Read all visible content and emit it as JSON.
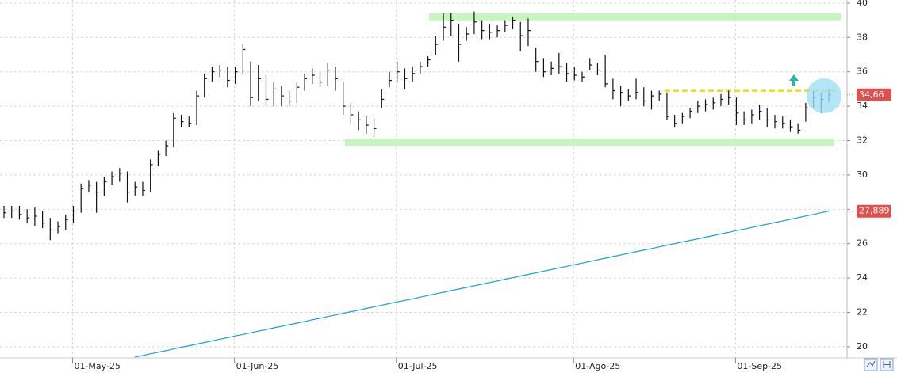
{
  "chart_data": {
    "type": "hlc",
    "categories": [
      null,
      null,
      null,
      null,
      null,
      null,
      null,
      null,
      null,
      "01-May-25",
      null,
      null,
      null,
      null,
      null,
      null,
      null,
      null,
      null,
      null,
      null,
      null,
      null,
      null,
      null,
      null,
      null,
      null,
      null,
      null,
      "01-Jun-25",
      null,
      null,
      null,
      null,
      null,
      null,
      null,
      null,
      null,
      null,
      null,
      null,
      null,
      null,
      null,
      null,
      null,
      null,
      null,
      null,
      "01-Jul-25",
      null,
      null,
      null,
      null,
      null,
      null,
      null,
      null,
      null,
      null,
      null,
      null,
      null,
      null,
      null,
      null,
      null,
      null,
      null,
      null,
      null,
      null,
      "01-Ago-25",
      null,
      null,
      null,
      null,
      null,
      null,
      null,
      null,
      null,
      null,
      null,
      null,
      null,
      null,
      null,
      null,
      null,
      null,
      null,
      null,
      "01-Sep-25",
      null,
      null,
      null,
      null,
      null,
      null,
      null,
      null,
      null,
      null,
      null,
      null
    ],
    "high": [
      28.2,
      28.2,
      28.2,
      28.0,
      28.1,
      27.9,
      27.5,
      27.3,
      27.7,
      28.2,
      29.5,
      29.7,
      29.6,
      29.9,
      30.2,
      30.4,
      30.2,
      29.6,
      29.6,
      30.9,
      31.4,
      32.0,
      33.6,
      33.5,
      33.4,
      34.9,
      35.9,
      36.3,
      36.4,
      36.3,
      36.3,
      37.6,
      36.6,
      36.4,
      35.8,
      35.4,
      35.2,
      34.9,
      35.4,
      35.9,
      36.2,
      36.0,
      36.5,
      36.3,
      35.4,
      34.2,
      33.7,
      33.4,
      33.3,
      35.0,
      36.0,
      36.6,
      36.2,
      36.3,
      36.6,
      36.9,
      38.1,
      39.4,
      39.4,
      38.8,
      38.6,
      39.5,
      39.0,
      38.8,
      38.7,
      39.0,
      39.2,
      38.9,
      39.1,
      37.4,
      36.8,
      36.6,
      37.1,
      36.5,
      36.3,
      36.0,
      36.8,
      36.5,
      37.0,
      35.6,
      35.2,
      35.0,
      35.6,
      35.1,
      34.9,
      34.9,
      34.8,
      33.5,
      33.6,
      33.9,
      34.3,
      34.4,
      34.5,
      34.7,
      34.9,
      34.5,
      33.7,
      33.8,
      34.1,
      33.9,
      33.5,
      33.4,
      33.2,
      33.0,
      34.2,
      34.9,
      34.8,
      35.0
    ],
    "low": [
      27.5,
      27.5,
      27.4,
      27.2,
      27.0,
      26.9,
      26.2,
      26.6,
      26.8,
      27.2,
      27.8,
      29.0,
      27.8,
      28.8,
      29.4,
      29.6,
      28.4,
      28.8,
      28.8,
      29.0,
      30.5,
      31.1,
      31.6,
      32.8,
      32.8,
      32.9,
      34.5,
      35.4,
      35.7,
      35.1,
      35.3,
      35.9,
      34.0,
      34.3,
      34.1,
      34.0,
      34.0,
      34.0,
      34.2,
      34.9,
      35.3,
      35.1,
      35.2,
      34.9,
      33.5,
      33.0,
      32.6,
      32.4,
      32.2,
      33.9,
      35.1,
      35.4,
      35.0,
      35.4,
      35.9,
      36.3,
      37.0,
      37.8,
      38.1,
      36.6,
      37.8,
      38.2,
      37.9,
      37.9,
      38.0,
      38.3,
      38.5,
      37.2,
      37.5,
      36.0,
      35.7,
      35.8,
      35.9,
      35.4,
      35.5,
      35.4,
      36.1,
      35.8,
      35.1,
      34.4,
      34.0,
      34.3,
      34.4,
      34.0,
      33.8,
      34.3,
      33.2,
      32.8,
      33.0,
      33.3,
      33.6,
      33.7,
      33.8,
      34.0,
      34.1,
      32.9,
      32.9,
      33.0,
      33.2,
      32.8,
      32.7,
      32.7,
      32.5,
      32.4,
      33.1,
      33.9,
      33.6,
      34.2
    ],
    "close": [
      27.8,
      27.9,
      27.7,
      27.5,
      27.6,
      27.2,
      26.8,
      27.0,
      27.4,
      27.9,
      29.2,
      29.4,
      29.0,
      29.6,
      29.9,
      30.1,
      29.0,
      29.3,
      29.1,
      30.6,
      31.2,
      31.7,
      33.3,
      33.1,
      33.0,
      34.6,
      35.6,
      36.0,
      36.1,
      35.5,
      36.0,
      37.3,
      34.5,
      35.6,
      34.4,
      35.0,
      34.6,
      34.3,
      35.1,
      35.6,
      35.8,
      35.4,
      36.1,
      35.6,
      34.0,
      33.5,
      33.2,
      32.9,
      32.7,
      34.4,
      35.5,
      36.0,
      35.6,
      35.9,
      36.3,
      36.7,
      37.6,
      38.6,
      39.0,
      37.6,
      38.2,
      38.9,
      38.4,
      38.3,
      38.4,
      38.7,
      39.0,
      38.1,
      38.4,
      36.6,
      36.0,
      36.2,
      36.3,
      35.9,
      35.8,
      35.7,
      36.4,
      36.1,
      35.3,
      34.9,
      34.8,
      34.6,
      34.8,
      34.3,
      34.6,
      34.7,
      33.4,
      33.0,
      33.4,
      33.7,
      34.0,
      34.1,
      34.2,
      34.4,
      34.5,
      33.6,
      33.2,
      33.5,
      33.7,
      33.2,
      33.1,
      33.0,
      32.8,
      32.6,
      33.9,
      34.5,
      34.4,
      34.66
    ],
    "color": "#111111",
    "last_label": "34,66",
    "moving_average": {
      "color": "#1a9fd6",
      "last_label": "27,889",
      "values": [
        null,
        null,
        null,
        null,
        null,
        null,
        null,
        null,
        null,
        null,
        null,
        null,
        null,
        null,
        null,
        null,
        null,
        19.4,
        19.49,
        19.59,
        19.68,
        19.77,
        19.87,
        19.97,
        20.06,
        20.15,
        20.25,
        20.34,
        20.44,
        20.53,
        20.63,
        20.72,
        20.81,
        20.91,
        21.0,
        21.1,
        21.19,
        21.29,
        21.38,
        21.47,
        21.57,
        21.66,
        21.76,
        21.85,
        21.95,
        22.04,
        22.13,
        22.23,
        22.32,
        22.42,
        22.51,
        22.61,
        22.7,
        22.79,
        22.89,
        22.98,
        23.08,
        23.17,
        23.27,
        23.36,
        23.45,
        23.55,
        23.64,
        23.74,
        23.83,
        23.93,
        24.02,
        24.12,
        24.21,
        24.3,
        24.4,
        24.49,
        24.59,
        24.68,
        24.78,
        24.87,
        24.96,
        25.06,
        25.15,
        25.25,
        25.34,
        25.44,
        25.53,
        25.62,
        25.72,
        25.81,
        25.91,
        26.0,
        26.1,
        26.19,
        26.28,
        26.38,
        26.47,
        26.57,
        26.66,
        26.76,
        26.85,
        26.94,
        27.04,
        27.13,
        27.23,
        27.32,
        27.42,
        27.51,
        27.61,
        27.7,
        27.8,
        27.889
      ]
    },
    "levels": [
      {
        "value": 39.2,
        "color": "#c6f5bd"
      },
      {
        "value": 31.9,
        "color": "#c6f5bd"
      },
      {
        "value": 34.9,
        "color": "#f2e000",
        "dashed": true
      }
    ],
    "ylim": [
      19.35,
      40.18
    ],
    "yticks": [
      20,
      22,
      24,
      26,
      28,
      30,
      32,
      34,
      36,
      38,
      40
    ],
    "grid": true
  }
}
